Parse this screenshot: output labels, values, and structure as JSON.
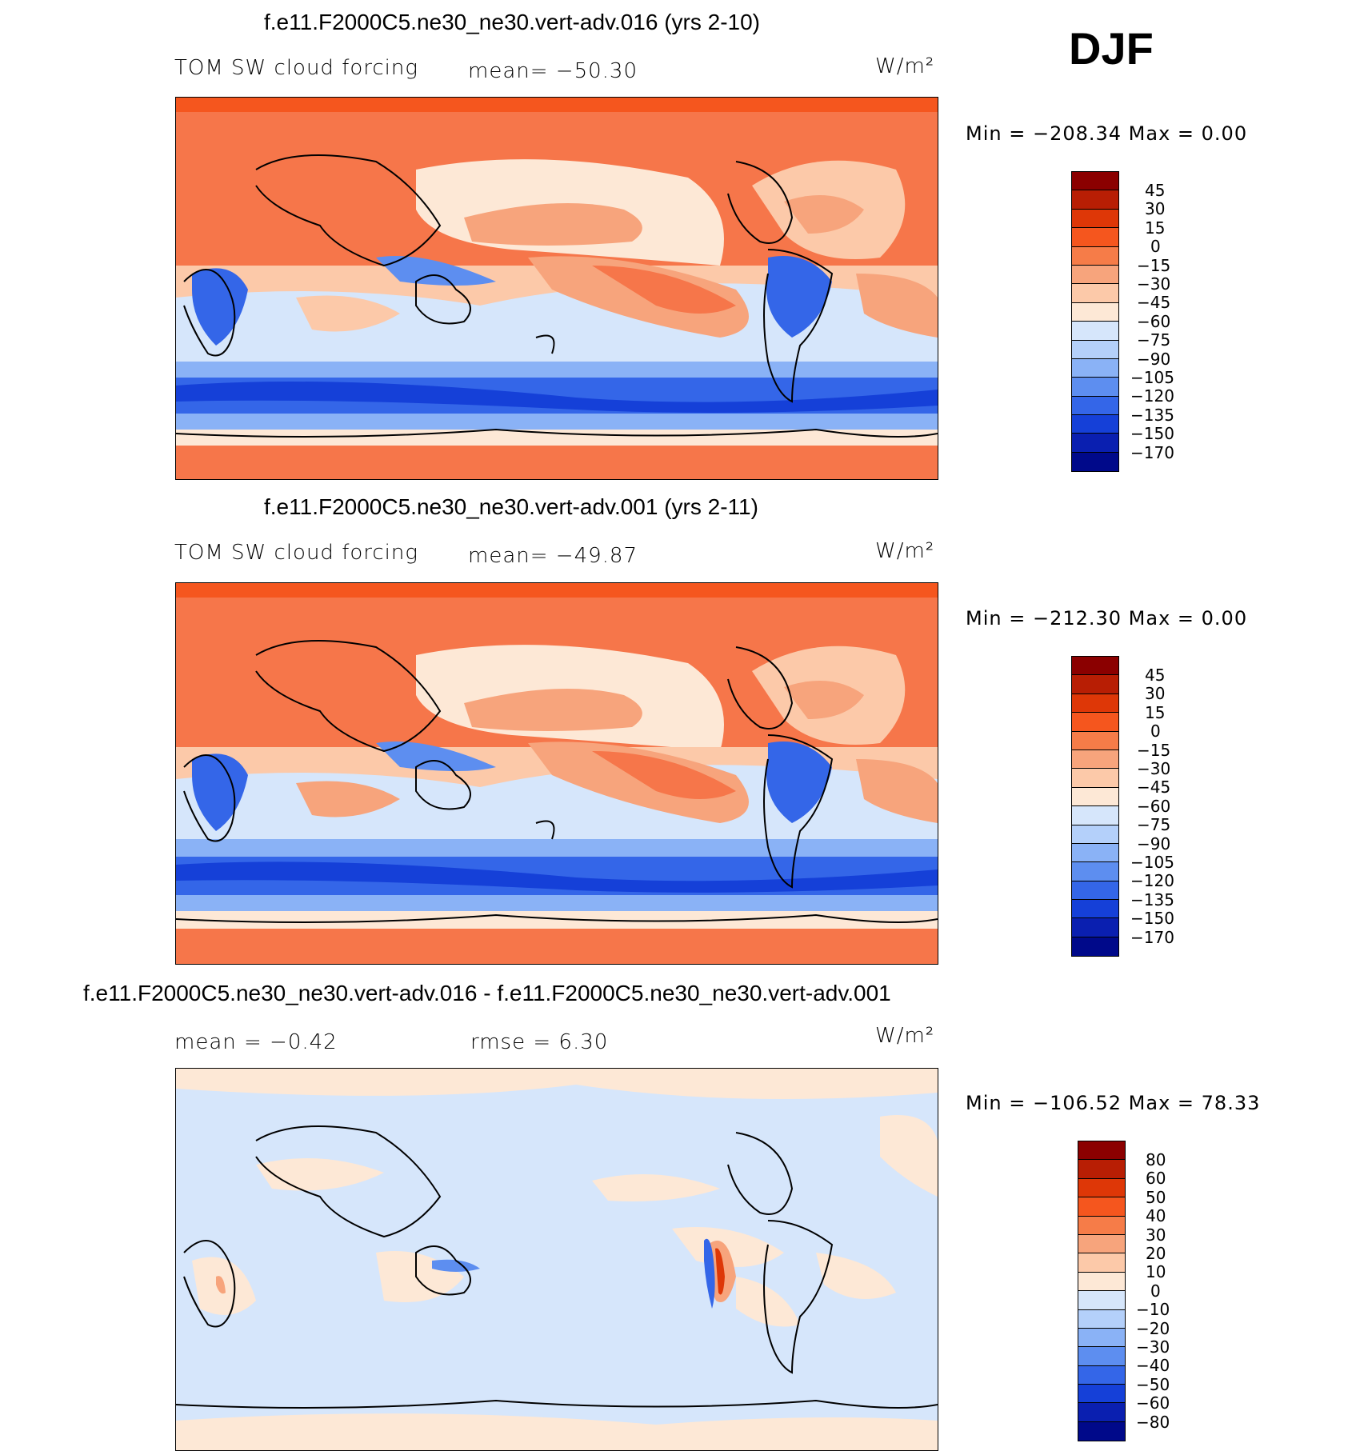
{
  "season": "DJF",
  "units_label": "W/m²",
  "panels": [
    {
      "title": "f.e11.F2000C5.ne30_ne30.vert-adv.016 (yrs 2-10)",
      "variable": "TOM SW cloud forcing",
      "stat1": "mean= −50.30",
      "stat2": "",
      "minmax": "Min = −208.34 Max =    0.00",
      "colorbar_labels": [
        "45",
        "30",
        "15",
        "0",
        "−15",
        "−30",
        "−45",
        "−60",
        "−75",
        "−90",
        "−105",
        "−120",
        "−135",
        "−150",
        "−170"
      ]
    },
    {
      "title": "f.e11.F2000C5.ne30_ne30.vert-adv.001 (yrs 2-11)",
      "variable": "TOM SW cloud forcing",
      "stat1": "mean= −49.87",
      "stat2": "",
      "minmax": "Min = −212.30 Max =    0.00",
      "colorbar_labels": [
        "45",
        "30",
        "15",
        "0",
        "−15",
        "−30",
        "−45",
        "−60",
        "−75",
        "−90",
        "−105",
        "−120",
        "−135",
        "−150",
        "−170"
      ]
    },
    {
      "title": "f.e11.F2000C5.ne30_ne30.vert-adv.016 - f.e11.F2000C5.ne30_ne30.vert-adv.001",
      "variable": "mean =   −0.42",
      "stat1": "",
      "stat2": "rmse =    6.30",
      "minmax": "Min = −106.52 Max =   78.33",
      "colorbar_labels": [
        "80",
        "60",
        "50",
        "40",
        "30",
        "20",
        "10",
        "0",
        "−10",
        "−20",
        "−30",
        "−40",
        "−50",
        "−60",
        "−80"
      ]
    }
  ],
  "colorbar_colors": [
    "#8b0000",
    "#b81e04",
    "#de3707",
    "#f5561e",
    "#f67c48",
    "#f7a47c",
    "#fcc9a9",
    "#fde8d6",
    "#d6e6fb",
    "#b4d0fa",
    "#8ab2f6",
    "#5d8ef0",
    "#3466e8",
    "#1540d8",
    "#0a1fb0",
    "#00098a"
  ],
  "map_palette": {
    "land_high": "#f6764a",
    "cap": "#f5561e",
    "subtropic": "#f7a47c",
    "light": "#fcc9a9",
    "pale": "#fde8d6",
    "light_blue": "#d6e6fb",
    "mid_blue": "#8ab2f6",
    "blue": "#3466e8",
    "deep_blue": "#1540d8",
    "diff_bg": "#d6e6fb",
    "diff_pos": "#fde8d6"
  }
}
